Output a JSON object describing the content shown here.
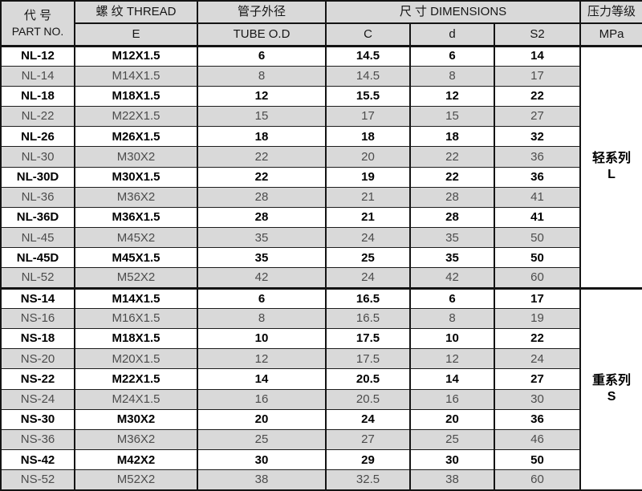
{
  "colors": {
    "stripe": "#d9d9d9",
    "header_bg": "#d9d9d9",
    "border": "#141414",
    "text_muted": "#4c4c4c",
    "text_strong": "#000000"
  },
  "table": {
    "header": {
      "part_no_cn": "代  号",
      "part_no_en": "PART NO.",
      "thread_cn": "螺 纹  THREAD",
      "thread_sub": "E",
      "tube_cn": "管子外径",
      "tube_sub": "TUBE O.D",
      "dims_cn": "尺 寸  DIMENSIONS",
      "dim_c": "C",
      "dim_d": "d",
      "dim_s2": "S2",
      "pressure_cn": "压力等级",
      "pressure_sub": "MPa"
    },
    "sections": [
      {
        "series_cn": "轻系列",
        "series_code": "L",
        "rows": [
          {
            "part_no": "NL-12",
            "thread": "M12X1.5",
            "tube_od": "6",
            "c": "14.5",
            "d": "6",
            "s2": "14",
            "bold": true
          },
          {
            "part_no": "NL-14",
            "thread": "M14X1.5",
            "tube_od": "8",
            "c": "14.5",
            "d": "8",
            "s2": "17",
            "bold": false
          },
          {
            "part_no": "NL-18",
            "thread": "M18X1.5",
            "tube_od": "12",
            "c": "15.5",
            "d": "12",
            "s2": "22",
            "bold": true
          },
          {
            "part_no": "NL-22",
            "thread": "M22X1.5",
            "tube_od": "15",
            "c": "17",
            "d": "15",
            "s2": "27",
            "bold": false
          },
          {
            "part_no": "NL-26",
            "thread": "M26X1.5",
            "tube_od": "18",
            "c": "18",
            "d": "18",
            "s2": "32",
            "bold": true
          },
          {
            "part_no": "NL-30",
            "thread": "M30X2",
            "tube_od": "22",
            "c": "20",
            "d": "22",
            "s2": "36",
            "bold": false
          },
          {
            "part_no": "NL-30D",
            "thread": "M30X1.5",
            "tube_od": "22",
            "c": "19",
            "d": "22",
            "s2": "36",
            "bold": true
          },
          {
            "part_no": "NL-36",
            "thread": "M36X2",
            "tube_od": "28",
            "c": "21",
            "d": "28",
            "s2": "41",
            "bold": false
          },
          {
            "part_no": "NL-36D",
            "thread": "M36X1.5",
            "tube_od": "28",
            "c": "21",
            "d": "28",
            "s2": "41",
            "bold": true
          },
          {
            "part_no": "NL-45",
            "thread": "M45X2",
            "tube_od": "35",
            "c": "24",
            "d": "35",
            "s2": "50",
            "bold": false
          },
          {
            "part_no": "NL-45D",
            "thread": "M45X1.5",
            "tube_od": "35",
            "c": "25",
            "d": "35",
            "s2": "50",
            "bold": true
          },
          {
            "part_no": "NL-52",
            "thread": "M52X2",
            "tube_od": "42",
            "c": "24",
            "d": "42",
            "s2": "60",
            "bold": false
          }
        ]
      },
      {
        "series_cn": "重系列",
        "series_code": "S",
        "rows": [
          {
            "part_no": "NS-14",
            "thread": "M14X1.5",
            "tube_od": "6",
            "c": "16.5",
            "d": "6",
            "s2": "17",
            "bold": true
          },
          {
            "part_no": "NS-16",
            "thread": "M16X1.5",
            "tube_od": "8",
            "c": "16.5",
            "d": "8",
            "s2": "19",
            "bold": false
          },
          {
            "part_no": "NS-18",
            "thread": "M18X1.5",
            "tube_od": "10",
            "c": "17.5",
            "d": "10",
            "s2": "22",
            "bold": true
          },
          {
            "part_no": "NS-20",
            "thread": "M20X1.5",
            "tube_od": "12",
            "c": "17.5",
            "d": "12",
            "s2": "24",
            "bold": false
          },
          {
            "part_no": "NS-22",
            "thread": "M22X1.5",
            "tube_od": "14",
            "c": "20.5",
            "d": "14",
            "s2": "27",
            "bold": true
          },
          {
            "part_no": "NS-24",
            "thread": "M24X1.5",
            "tube_od": "16",
            "c": "20.5",
            "d": "16",
            "s2": "30",
            "bold": false
          },
          {
            "part_no": "NS-30",
            "thread": "M30X2",
            "tube_od": "20",
            "c": "24",
            "d": "20",
            "s2": "36",
            "bold": true
          },
          {
            "part_no": "NS-36",
            "thread": "M36X2",
            "tube_od": "25",
            "c": "27",
            "d": "25",
            "s2": "46",
            "bold": false
          },
          {
            "part_no": "NS-42",
            "thread": "M42X2",
            "tube_od": "30",
            "c": "29",
            "d": "30",
            "s2": "50",
            "bold": true
          },
          {
            "part_no": "NS-52",
            "thread": "M52X2",
            "tube_od": "38",
            "c": "32.5",
            "d": "38",
            "s2": "60",
            "bold": false
          }
        ]
      }
    ]
  }
}
